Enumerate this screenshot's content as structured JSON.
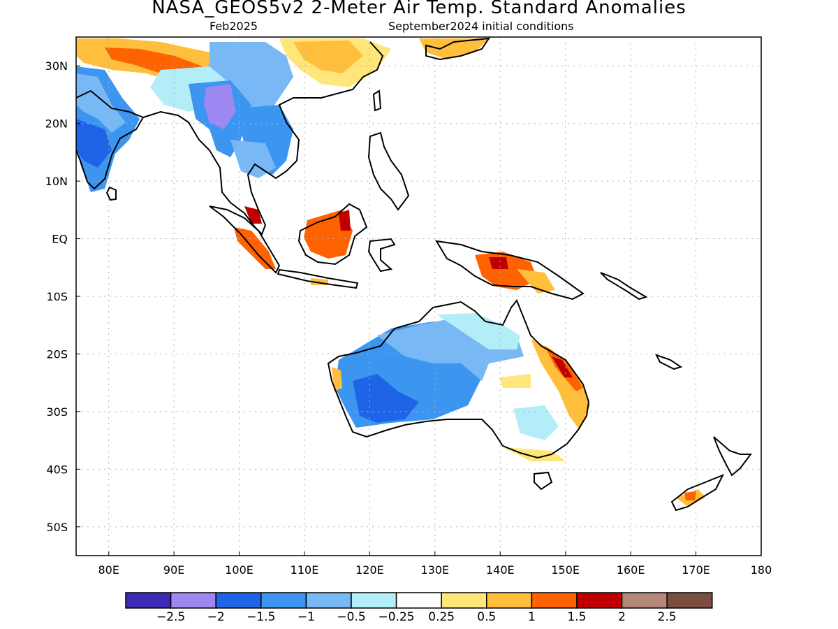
{
  "title": "NASA_GEOS5v2 2-Meter Air Temp. Standard Anomalies",
  "subtitle_left": "Feb2025",
  "subtitle_right": "September2024 initial conditions",
  "map": {
    "lon_range": [
      75,
      180
    ],
    "lat_range": [
      -55,
      35
    ],
    "lat_ticks": [
      {
        "lat": 30,
        "label": "30N"
      },
      {
        "lat": 20,
        "label": "20N"
      },
      {
        "lat": 10,
        "label": "10N"
      },
      {
        "lat": 0,
        "label": "EQ"
      },
      {
        "lat": -10,
        "label": "10S"
      },
      {
        "lat": -20,
        "label": "20S"
      },
      {
        "lat": -30,
        "label": "30S"
      },
      {
        "lat": -40,
        "label": "40S"
      },
      {
        "lat": -50,
        "label": "50S"
      }
    ],
    "lon_ticks": [
      {
        "lon": 80,
        "label": "80E"
      },
      {
        "lon": 90,
        "label": "90E"
      },
      {
        "lon": 100,
        "label": "100E"
      },
      {
        "lon": 110,
        "label": "110E"
      },
      {
        "lon": 120,
        "label": "120E"
      },
      {
        "lon": 130,
        "label": "130E"
      },
      {
        "lon": 140,
        "label": "140E"
      },
      {
        "lon": 150,
        "label": "150E"
      },
      {
        "lon": 160,
        "label": "160E"
      },
      {
        "lon": 170,
        "label": "170E"
      },
      {
        "lon": 180,
        "label": "180"
      }
    ],
    "grid": true
  },
  "colorbar": {
    "colors": [
      "#3d2bb5",
      "#9d88f2",
      "#1f64e6",
      "#3c96f0",
      "#78b8f5",
      "#b3eef8",
      "#ffffff",
      "#ffe67a",
      "#ffbe3c",
      "#ff6200",
      "#c00000",
      "#b5877a",
      "#7a4f42"
    ],
    "labels": [
      "-2.5",
      "-2",
      "-1.5",
      "-1",
      "-0.5",
      "-0.25",
      "0.25",
      "0.5",
      "1",
      "1.5",
      "2",
      "2.5"
    ]
  },
  "anomaly_regions": [
    {
      "region": "NW Australia interior",
      "level": "-1"
    },
    {
      "region": "Central Australia",
      "level": "-0.5"
    },
    {
      "region": "SE Australia",
      "level": "-0.25"
    },
    {
      "region": "E Queensland coast",
      "level": "1"
    },
    {
      "region": "Borneo",
      "level": "1.5"
    },
    {
      "region": "New Guinea",
      "level": "1.5"
    },
    {
      "region": "Sumatra",
      "level": "1.5"
    },
    {
      "region": "Myanmar",
      "level": "-2"
    },
    {
      "region": "India",
      "level": "-1"
    },
    {
      "region": "Southern China",
      "level": "-0.5"
    },
    {
      "region": "Tibet",
      "level": "1"
    },
    {
      "region": "North of Yangtze",
      "level": "0.5"
    },
    {
      "region": "New Zealand South Island",
      "level": "1"
    }
  ]
}
